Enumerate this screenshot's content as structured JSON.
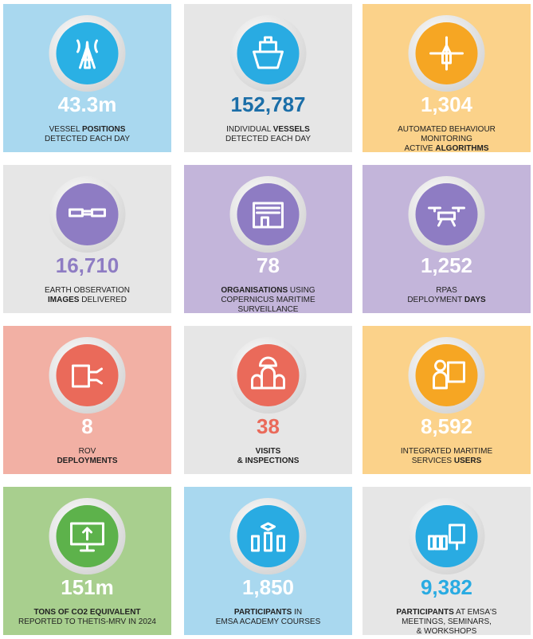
{
  "tiles": [
    {
      "value": "43.3m",
      "bg": "#a9d8ef",
      "circle": "#2ab0e4",
      "number_color": "#ffffff",
      "lines": [
        [
          {
            "text": "VESSEL "
          },
          {
            "text": "POSITIONS",
            "bold": true
          }
        ],
        [
          {
            "text": "DETECTED EACH DAY"
          }
        ]
      ]
    },
    {
      "value": "152,787",
      "bg": "#e6e6e6",
      "circle": "#29abe2",
      "number_color": "#1b6ea8",
      "lines": [
        [
          {
            "text": "INDIVIDUAL "
          },
          {
            "text": "VESSELS",
            "bold": true
          }
        ],
        [
          {
            "text": "DETECTED EACH DAY"
          }
        ]
      ]
    },
    {
      "value": "1,304",
      "bg": "#fbd28a",
      "circle": "#f6a623",
      "number_color": "#ffffff",
      "lines": [
        [
          {
            "text": "AUTOMATED BEHAVIOUR"
          }
        ],
        [
          {
            "text": "MONITORING"
          }
        ],
        [
          {
            "text": "ACTIVE "
          },
          {
            "text": "ALGORITHMS",
            "bold": true
          }
        ]
      ]
    },
    {
      "value": "16,710",
      "bg": "#e6e6e6",
      "circle": "#8e7cc3",
      "number_color": "#8e7cc3",
      "lines": [
        [
          {
            "text": "EARTH OBSERVATION"
          }
        ],
        [
          {
            "text": "IMAGES",
            "bold": true
          },
          {
            "text": " DELIVERED"
          }
        ]
      ]
    },
    {
      "value": "78",
      "bg": "#c3b5da",
      "circle": "#8e7cc3",
      "number_color": "#ffffff",
      "lines": [
        [
          {
            "text": "ORGANISATIONS",
            "bold": true
          },
          {
            "text": " USING"
          }
        ],
        [
          {
            "text": "COPERNICUS MARITIME"
          }
        ],
        [
          {
            "text": "SURVEILLANCE"
          }
        ]
      ]
    },
    {
      "value": "1,252",
      "bg": "#c3b5da",
      "circle": "#8e7cc3",
      "number_color": "#ffffff",
      "lines": [
        [
          {
            "text": "RPAS"
          }
        ],
        [
          {
            "text": "DEPLOYMENT "
          },
          {
            "text": "DAYS",
            "bold": true
          }
        ]
      ]
    },
    {
      "value": "8",
      "bg": "#f2b0a4",
      "circle": "#ea6a5a",
      "number_color": "#ffffff",
      "lines": [
        [
          {
            "text": "ROV"
          }
        ],
        [
          {
            "text": "DEPLOYMENTS",
            "bold": true
          }
        ]
      ]
    },
    {
      "value": "38",
      "bg": "#e6e6e6",
      "circle": "#ea6a5a",
      "number_color": "#ea6a5a",
      "lines": [
        [
          {
            "text": "VISITS",
            "bold": true
          }
        ],
        [
          {
            "text": "& INSPECTIONS",
            "bold": true
          }
        ]
      ]
    },
    {
      "value": "8,592",
      "bg": "#fbd28a",
      "circle": "#f6a623",
      "number_color": "#ffffff",
      "lines": [
        [
          {
            "text": "INTEGRATED MARITIME"
          }
        ],
        [
          {
            "text": "SERVICES "
          },
          {
            "text": "USERS",
            "bold": true
          }
        ]
      ]
    },
    {
      "value": "151m",
      "bg": "#a8cf8e",
      "circle": "#5db24b",
      "number_color": "#ffffff",
      "lines": [
        [
          {
            "text": "TONS OF CO2 EQUIVALENT",
            "bold": true
          }
        ],
        [
          {
            "text": "REPORTED TO THETIS-MRV IN 2024"
          }
        ]
      ]
    },
    {
      "value": "1,850",
      "bg": "#a9d8ef",
      "circle": "#29abe2",
      "number_color": "#ffffff",
      "lines": [
        [
          {
            "text": "PARTICIPANTS",
            "bold": true
          },
          {
            "text": " IN"
          }
        ],
        [
          {
            "text": "EMSA ACADEMY COURSES"
          }
        ]
      ]
    },
    {
      "value": "9,382",
      "bg": "#e6e6e6",
      "circle": "#29abe2",
      "number_color": "#29abe2",
      "lines": [
        [
          {
            "text": "PARTICIPANTS",
            "bold": true
          },
          {
            "text": " AT EMSA'S"
          }
        ],
        [
          {
            "text": "MEETINGS, SEMINARS,"
          }
        ],
        [
          {
            "text": "& WORKSHOPS"
          }
        ]
      ]
    }
  ]
}
